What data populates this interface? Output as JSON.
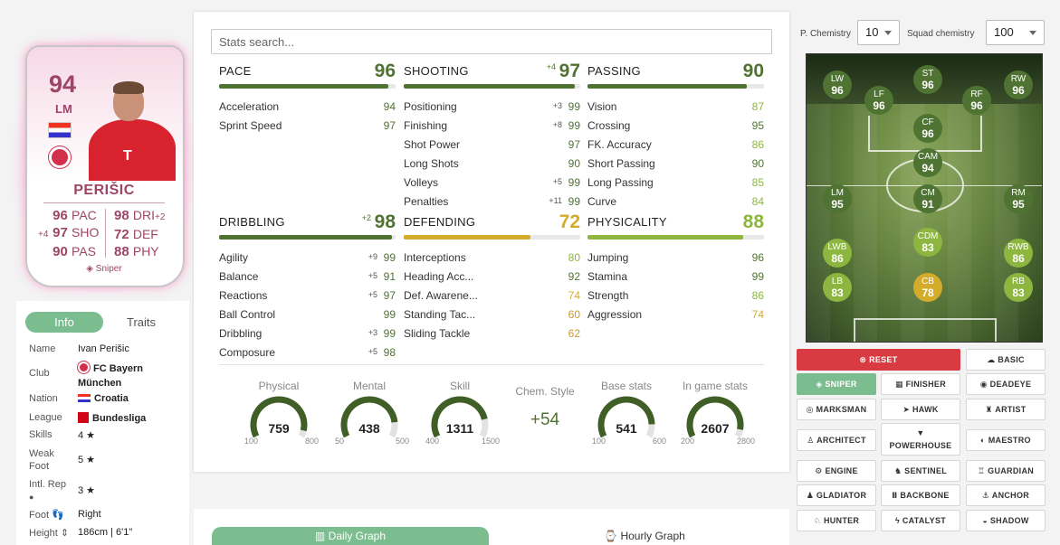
{
  "card": {
    "rating": "94",
    "position": "LM",
    "name": "PERIŠIC",
    "left_stats": [
      {
        "boost": "",
        "value": "96",
        "label": "PAC"
      },
      {
        "boost": "+4",
        "value": "97",
        "label": "SHO"
      },
      {
        "boost": "",
        "value": "90",
        "label": "PAS"
      }
    ],
    "right_stats": [
      {
        "value": "98",
        "label": "DRI",
        "boost": "+2"
      },
      {
        "value": "72",
        "label": "DEF",
        "boost": ""
      },
      {
        "value": "88",
        "label": "PHY",
        "boost": ""
      }
    ],
    "chem_style": "Sniper",
    "club_logo_text": "T",
    "colors": {
      "accent": "#9c4566"
    }
  },
  "info": {
    "tabs": [
      "Info",
      "Traits"
    ],
    "rows": [
      {
        "label": "Name",
        "value": "Ivan Perišic"
      },
      {
        "label": "Club",
        "value": "FC Bayern München"
      },
      {
        "label": "Nation",
        "value": "Croatia"
      },
      {
        "label": "League",
        "value": "Bundesliga"
      },
      {
        "label": "Skills",
        "value": "4 ★"
      },
      {
        "label": "Weak Foot",
        "value": "5 ★"
      },
      {
        "label": "Intl. Rep",
        "value": "3 ★"
      },
      {
        "label": "Foot",
        "value": "Right"
      },
      {
        "label": "Height",
        "value": "186cm | 6'1\""
      }
    ]
  },
  "search": {
    "placeholder": "Stats search..."
  },
  "categories": [
    {
      "title": "PACE",
      "value": "96",
      "boost": "",
      "fill": 0.96,
      "color": "#4f7332",
      "stats": [
        {
          "name": "Acceleration",
          "boost": "",
          "value": "94",
          "color": "#4f7332"
        },
        {
          "name": "Sprint Speed",
          "boost": "",
          "value": "97",
          "color": "#4f7332"
        }
      ]
    },
    {
      "title": "SHOOTING",
      "value": "97",
      "boost": "+4",
      "fill": 0.97,
      "color": "#4f7332",
      "stats": [
        {
          "name": "Positioning",
          "boost": "+3",
          "value": "99",
          "color": "#4f7332"
        },
        {
          "name": "Finishing",
          "boost": "+8",
          "value": "99",
          "color": "#4f7332"
        },
        {
          "name": "Shot Power",
          "boost": "",
          "value": "97",
          "color": "#4f7332"
        },
        {
          "name": "Long Shots",
          "boost": "",
          "value": "90",
          "color": "#4f7332"
        },
        {
          "name": "Volleys",
          "boost": "+5",
          "value": "99",
          "color": "#4f7332"
        },
        {
          "name": "Penalties",
          "boost": "+11",
          "value": "99",
          "color": "#4f7332"
        }
      ]
    },
    {
      "title": "PASSING",
      "value": "90",
      "boost": "",
      "fill": 0.9,
      "color": "#4f7332",
      "stats": [
        {
          "name": "Vision",
          "boost": "",
          "value": "87",
          "color": "#8db640"
        },
        {
          "name": "Crossing",
          "boost": "",
          "value": "95",
          "color": "#4f7332"
        },
        {
          "name": "FK. Accuracy",
          "boost": "",
          "value": "86",
          "color": "#8db640"
        },
        {
          "name": "Short Passing",
          "boost": "",
          "value": "90",
          "color": "#4f7332"
        },
        {
          "name": "Long Passing",
          "boost": "",
          "value": "85",
          "color": "#8db640"
        },
        {
          "name": "Curve",
          "boost": "",
          "value": "84",
          "color": "#8db640"
        }
      ]
    },
    {
      "title": "DRIBBLING",
      "value": "98",
      "boost": "+2",
      "fill": 0.98,
      "color": "#4f7332",
      "stats": [
        {
          "name": "Agility",
          "boost": "+9",
          "value": "99",
          "color": "#4f7332"
        },
        {
          "name": "Balance",
          "boost": "+5",
          "value": "91",
          "color": "#4f7332"
        },
        {
          "name": "Reactions",
          "boost": "+5",
          "value": "97",
          "color": "#4f7332"
        },
        {
          "name": "Ball Control",
          "boost": "",
          "value": "99",
          "color": "#4f7332"
        },
        {
          "name": "Dribbling",
          "boost": "+3",
          "value": "99",
          "color": "#4f7332"
        },
        {
          "name": "Composure",
          "boost": "+5",
          "value": "98",
          "color": "#4f7332"
        }
      ]
    },
    {
      "title": "DEFENDING",
      "value": "72",
      "boost": "",
      "fill": 0.72,
      "color": "#d4ac2b",
      "stats": [
        {
          "name": "Interceptions",
          "boost": "",
          "value": "80",
          "color": "#8db640"
        },
        {
          "name": "Heading Acc...",
          "boost": "",
          "value": "92",
          "color": "#4f7332"
        },
        {
          "name": "Def. Awarene...",
          "boost": "",
          "value": "74",
          "color": "#d4ac2b"
        },
        {
          "name": "Standing Tac...",
          "boost": "",
          "value": "60",
          "color": "#c99a2e"
        },
        {
          "name": "Sliding Tackle",
          "boost": "",
          "value": "62",
          "color": "#c99a2e"
        }
      ]
    },
    {
      "title": "PHYSICALITY",
      "value": "88",
      "boost": "",
      "fill": 0.88,
      "color": "#8db640",
      "stats": [
        {
          "name": "Jumping",
          "boost": "",
          "value": "96",
          "color": "#4f7332"
        },
        {
          "name": "Stamina",
          "boost": "",
          "value": "99",
          "color": "#4f7332"
        },
        {
          "name": "Strength",
          "boost": "",
          "value": "86",
          "color": "#8db640"
        },
        {
          "name": "Aggression",
          "boost": "",
          "value": "74",
          "color": "#d4ac2b"
        }
      ]
    }
  ],
  "gauges": [
    {
      "title": "Physical",
      "value": "759",
      "min": "100",
      "max": "800",
      "fraction": 0.94
    },
    {
      "title": "Mental",
      "value": "438",
      "min": "50",
      "max": "500",
      "fraction": 0.86
    },
    {
      "title": "Skill",
      "value": "1311",
      "min": "400",
      "max": "1500",
      "fraction": 0.83
    },
    {
      "title": "Base stats",
      "value": "541",
      "min": "100",
      "max": "600",
      "fraction": 0.88
    },
    {
      "title": "In game stats",
      "value": "2607",
      "min": "200",
      "max": "2800",
      "fraction": 0.93
    }
  ],
  "chem_style_box": {
    "title": "Chem. Style",
    "value": "+54"
  },
  "graph_tabs": {
    "daily": "Daily Graph",
    "hourly": "Hourly Graph"
  },
  "chemistry": {
    "p_label": "P. Chemistry",
    "p_value": "10",
    "squad_label": "Squad chemistry",
    "squad_value": "100"
  },
  "pitch_players": [
    {
      "pos": "LW",
      "rating": "96",
      "color": "#4f7332"
    },
    {
      "pos": "ST",
      "rating": "96",
      "color": "#4f7332"
    },
    {
      "pos": "RW",
      "rating": "96",
      "color": "#4f7332"
    },
    {
      "pos": "LF",
      "rating": "96",
      "color": "#4f7332"
    },
    {
      "pos": "RF",
      "rating": "96",
      "color": "#4f7332"
    },
    {
      "pos": "CF",
      "rating": "96",
      "color": "#4f7332"
    },
    {
      "pos": "CAM",
      "rating": "94",
      "color": "#4f7332"
    },
    {
      "pos": "LM",
      "rating": "95",
      "color": "#4f7332"
    },
    {
      "pos": "CM",
      "rating": "91",
      "color": "#4f7332"
    },
    {
      "pos": "RM",
      "rating": "95",
      "color": "#4f7332"
    },
    {
      "pos": "CDM",
      "rating": "83",
      "color": "#8db640"
    },
    {
      "pos": "LWB",
      "rating": "86",
      "color": "#8db640"
    },
    {
      "pos": "RWB",
      "rating": "86",
      "color": "#8db640"
    },
    {
      "pos": "LB",
      "rating": "83",
      "color": "#8db640"
    },
    {
      "pos": "CB",
      "rating": "78",
      "color": "#d4ac2b"
    },
    {
      "pos": "RB",
      "rating": "83",
      "color": "#8db640"
    }
  ],
  "chem_buttons": {
    "reset": "RESET",
    "basic": "BASIC",
    "sniper": "SNIPER",
    "finisher": "FINISHER",
    "deadeye": "DEADEYE",
    "marksman": "MARKSMAN",
    "hawk": "HAWK",
    "artist": "ARTIST",
    "architect": "ARCHITECT",
    "powerhouse": "POWERHOUSE",
    "maestro": "MAESTRO",
    "engine": "ENGINE",
    "sentinel": "SENTINEL",
    "guardian": "GUARDIAN",
    "gladiator": "GLADIATOR",
    "backbone": "BACKBONE",
    "anchor": "ANCHOR",
    "hunter": "HUNTER",
    "catalyst": "CATALYST",
    "shadow": "SHADOW"
  }
}
